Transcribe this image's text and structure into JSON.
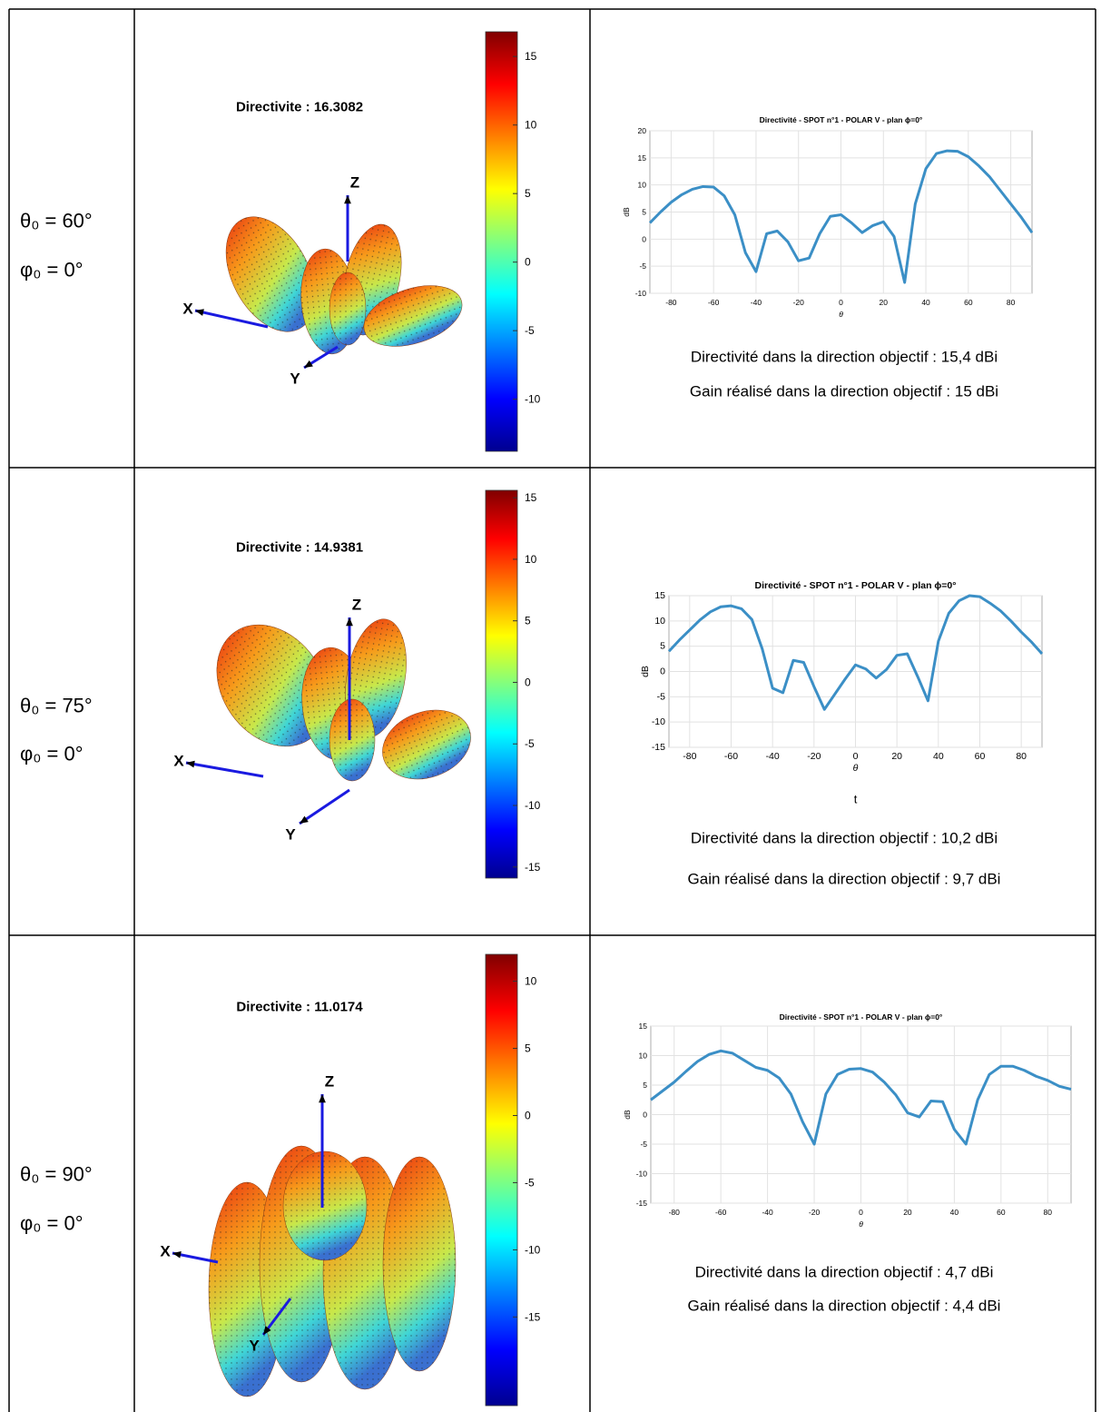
{
  "rows": [
    {
      "label_theta": "θ₀ = 60°",
      "label_phi": "φ₀ = 0°",
      "pattern": {
        "title": "Directivite : 16.3082",
        "axis_labels": [
          "X",
          "Y",
          "Z"
        ],
        "colorbar_lim": [
          -13.8,
          16.8
        ],
        "colorbar_ticks": [
          -10,
          -5,
          0,
          5,
          10,
          15
        ]
      },
      "chart": {
        "type": "line",
        "title": "Directivité - SPOT n°1 - POLAR V - plan ϕ=0°",
        "x_label": "θ",
        "y_label": "dB",
        "color": "#3b8fc6",
        "x": [
          -90,
          -85,
          -80,
          -75,
          -70,
          -65,
          -60,
          -55,
          -50,
          -45,
          -40,
          -35,
          -30,
          -25,
          -20,
          -15,
          -10,
          -5,
          0,
          5,
          10,
          15,
          20,
          25,
          30,
          35,
          40,
          45,
          50,
          55,
          60,
          65,
          70,
          75,
          80,
          85,
          90
        ],
        "values": [
          3,
          5,
          6.8,
          8.2,
          9.2,
          9.7,
          9.6,
          8,
          4.5,
          -2.5,
          -6,
          1,
          1.5,
          -0.5,
          -4,
          -3.5,
          1,
          4.2,
          4.5,
          3,
          1.2,
          2.5,
          3.2,
          0.5,
          -8,
          6.5,
          13,
          15.8,
          16.3,
          16.2,
          15.2,
          13.5,
          11.5,
          9,
          6.5,
          4,
          1.2
        ],
        "xlim": [
          -90,
          90
        ],
        "xticks": [
          -80,
          -60,
          -40,
          -20,
          0,
          20,
          40,
          60,
          80
        ],
        "ylim": [
          -10,
          20
        ],
        "yticks": [
          -10,
          -5,
          0,
          5,
          10,
          15,
          20
        ],
        "grid": true
      },
      "captions": [
        "Directivité dans la direction objectif : 15,4 dBi",
        "Gain réalisé dans la direction objectif : 15 dBi"
      ]
    },
    {
      "label_theta": "θ₀ = 75°",
      "label_phi": "φ₀ = 0°",
      "pattern": {
        "title": "Directivite : 14.9381",
        "axis_labels": [
          "X",
          "Y",
          "Z"
        ],
        "colorbar_lim": [
          -15.9,
          15.6
        ],
        "colorbar_ticks": [
          -15,
          -10,
          -5,
          0,
          5,
          10,
          15
        ]
      },
      "chart": {
        "type": "line",
        "title": "Directivité - SPOT n°1 - POLAR V - plan ϕ=0°",
        "x_label": "θ",
        "y_label": "dB",
        "color": "#3b8fc6",
        "x": [
          -90,
          -85,
          -80,
          -75,
          -70,
          -65,
          -60,
          -55,
          -50,
          -45,
          -40,
          -35,
          -30,
          -25,
          -20,
          -15,
          -10,
          -5,
          0,
          5,
          10,
          15,
          20,
          25,
          30,
          35,
          40,
          45,
          50,
          55,
          60,
          65,
          70,
          75,
          80,
          85,
          90
        ],
        "values": [
          4,
          6.2,
          8.2,
          10.2,
          11.8,
          12.8,
          13,
          12.4,
          10.3,
          4.5,
          -3.3,
          -4.2,
          2.2,
          1.8,
          -3,
          -7.5,
          -4.5,
          -1.5,
          1.3,
          0.5,
          -1.3,
          0.4,
          3.2,
          3.5,
          -1,
          -5.8,
          6,
          11.5,
          14,
          15,
          14.8,
          13.5,
          12,
          10,
          7.8,
          5.8,
          3.5
        ],
        "xlim": [
          -90,
          90
        ],
        "xticks": [
          -80,
          -60,
          -40,
          -20,
          0,
          20,
          40,
          60,
          80
        ],
        "ylim": [
          -15,
          15
        ],
        "yticks": [
          -15,
          -10,
          -5,
          0,
          5,
          10,
          15
        ],
        "grid": true
      },
      "extra_text": "t",
      "captions": [
        "Directivité dans la direction objectif : 10,2 dBi",
        "Gain réalisé dans la direction objectif : 9,7 dBi"
      ]
    },
    {
      "label_theta": "θ₀ = 90°",
      "label_phi": "φ₀ = 0°",
      "pattern": {
        "title": "Directivite : 11.0174",
        "axis_labels": [
          "X",
          "Y",
          "Z"
        ],
        "colorbar_lim": [
          -21.6,
          12
        ],
        "colorbar_ticks": [
          -15,
          -10,
          -5,
          0,
          5,
          10
        ]
      },
      "chart": {
        "type": "line",
        "title": "Directivité - SPOT n°1 - POLAR V - plan ϕ=0°",
        "x_label": "θ",
        "y_label": "dB",
        "color": "#3b8fc6",
        "x": [
          -90,
          -85,
          -80,
          -75,
          -70,
          -65,
          -60,
          -55,
          -50,
          -45,
          -40,
          -35,
          -30,
          -25,
          -20,
          -15,
          -10,
          -5,
          0,
          5,
          10,
          15,
          20,
          25,
          30,
          35,
          40,
          45,
          50,
          55,
          60,
          65,
          70,
          75,
          80,
          85,
          90
        ],
        "values": [
          2.5,
          4,
          5.5,
          7.3,
          9,
          10.2,
          10.8,
          10.4,
          9.2,
          8,
          7.5,
          6.2,
          3.5,
          -1.2,
          -5,
          3.5,
          6.8,
          7.7,
          7.8,
          7.2,
          5.5,
          3.3,
          0.3,
          -0.4,
          2.3,
          2.2,
          -2.5,
          -5,
          2.5,
          6.8,
          8.2,
          8.2,
          7.5,
          6.5,
          5.8,
          4.8,
          4.3
        ],
        "xlim": [
          -90,
          90
        ],
        "xticks": [
          -80,
          -60,
          -40,
          -20,
          0,
          20,
          40,
          60,
          80
        ],
        "ylim": [
          -15,
          15
        ],
        "yticks": [
          -15,
          -10,
          -5,
          0,
          5,
          10,
          15
        ],
        "grid": true
      },
      "captions": [
        "Directivité dans la direction objectif : 4,7 dBi",
        "Gain réalisé dans la direction objectif : 4,4 dBi"
      ]
    }
  ]
}
